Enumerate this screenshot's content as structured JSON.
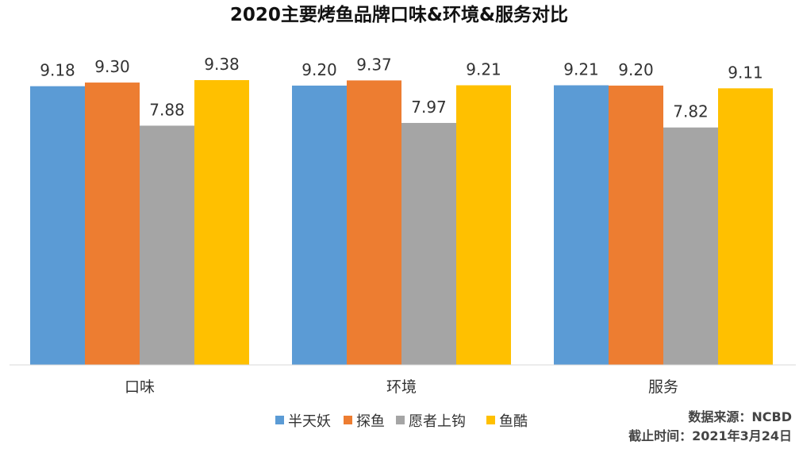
{
  "chart_data": {
    "type": "bar",
    "title": "2020主要烤鱼品牌口味&环境&服务对比",
    "categories": [
      "口味",
      "环境",
      "服务"
    ],
    "series": [
      {
        "name": "半天妖",
        "values": [
          9.18,
          9.2,
          9.21
        ],
        "color": "#5b9bd5"
      },
      {
        "name": "探鱼",
        "values": [
          9.3,
          9.37,
          9.2
        ],
        "color": "#ed7d31"
      },
      {
        "name": "愿者上钩",
        "values": [
          7.88,
          7.97,
          7.82
        ],
        "color": "#a5a5a5"
      },
      {
        "name": "鱼酷",
        "values": [
          9.38,
          9.21,
          9.11
        ],
        "color": "#ffc000"
      }
    ],
    "value_labels": [
      [
        "9.18",
        "9.20",
        "9.21"
      ],
      [
        "9.30",
        "9.37",
        "9.20"
      ],
      [
        "7.88",
        "7.97",
        "7.82"
      ],
      [
        "9.38",
        "9.21",
        "9.11"
      ]
    ],
    "ylim": [
      0,
      9.38
    ],
    "grid": false,
    "legend_position": "bottom"
  },
  "source": {
    "source_line": "数据来源：NCBD",
    "date_line": "截止时间：2021年3月24日"
  }
}
